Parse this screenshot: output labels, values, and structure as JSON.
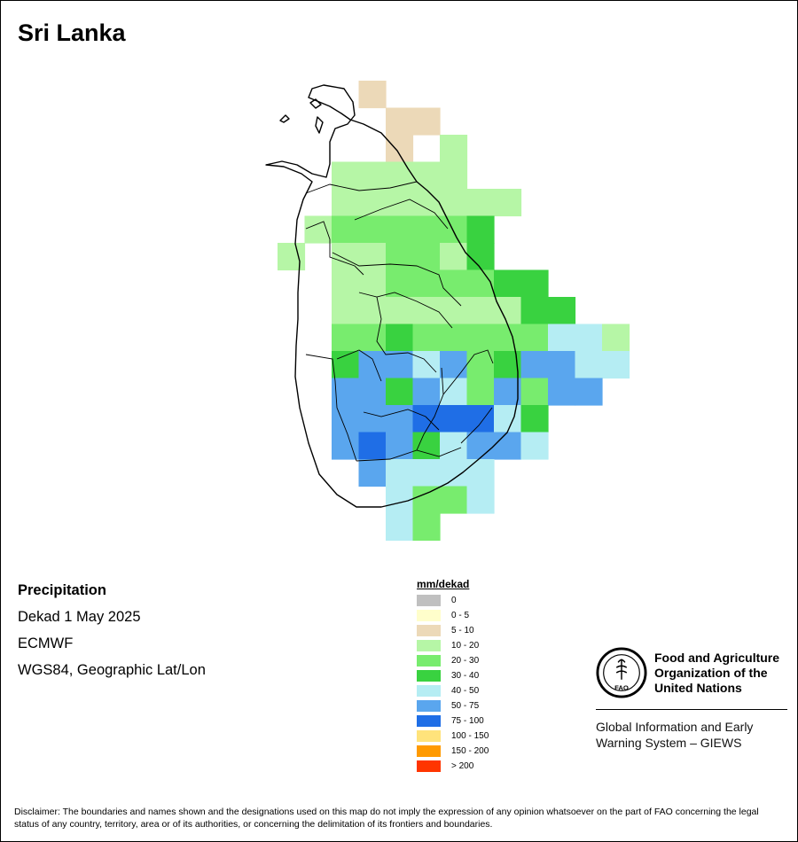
{
  "title": "Sri Lanka",
  "info": {
    "title": "Precipitation",
    "period": "Dekad 1 May 2025",
    "source": "ECMWF",
    "projection": "WGS84, Geographic Lat/Lon"
  },
  "legend": {
    "title": "mm/dekad",
    "items": [
      {
        "label": "0",
        "color": "#c0c0c0"
      },
      {
        "label": "0 - 5",
        "color": "#fffecb"
      },
      {
        "label": "5 - 10",
        "color": "#ecd9b8"
      },
      {
        "label": "10 - 20",
        "color": "#b6f6a6"
      },
      {
        "label": "20 - 30",
        "color": "#78ec6e"
      },
      {
        "label": "30 - 40",
        "color": "#39d240"
      },
      {
        "label": "40 - 50",
        "color": "#b5edf3"
      },
      {
        "label": "50 - 75",
        "color": "#5aa6ee"
      },
      {
        "label": "75 - 100",
        "color": "#1f6ee6"
      },
      {
        "label": "100 - 150",
        "color": "#ffe37b"
      },
      {
        "label": "150 - 200",
        "color": "#ff9a00"
      },
      {
        "label": "> 200",
        "color": "#ff3500"
      }
    ]
  },
  "map_grid": {
    "classes": [
      "5 - 10",
      "10 - 20",
      "20 - 30",
      "30 - 40",
      "40 - 50",
      "50 - 75",
      "75 - 100"
    ],
    "rows": [
      "...0....",
      "....00..",
      "....0.1.",
      "..11111.",
      "..1111111.",
      ".1222223.",
      "1.112213..",
      "..11222233",
      "..111111133",
      "..22322222441",
      "..35545235544",
      "..5535425255",
      "..55566643",
      "..56534554",
      "...54444",
      "....4224",
      "....42.."
    ]
  },
  "logo": {
    "org_name": "Food and Agriculture Organization of the United Nations",
    "org_line1": "Food and Agriculture",
    "org_line2": "Organization of the",
    "org_line3": "United Nations",
    "emblem_letters": "FAO",
    "system": "Global Information and Early Warning System – GIEWS",
    "system_line1": "Global Information and Early",
    "system_line2": "Warning System – GIEWS"
  },
  "disclaimer": "Disclaimer: The boundaries and names shown and the designations used on this map do not imply the expression of any opinion whatsoever on the part of FAO concerning the legal status of any country, territory, area or of its authorities, or concerning the delimitation of its frontiers and boundaries."
}
